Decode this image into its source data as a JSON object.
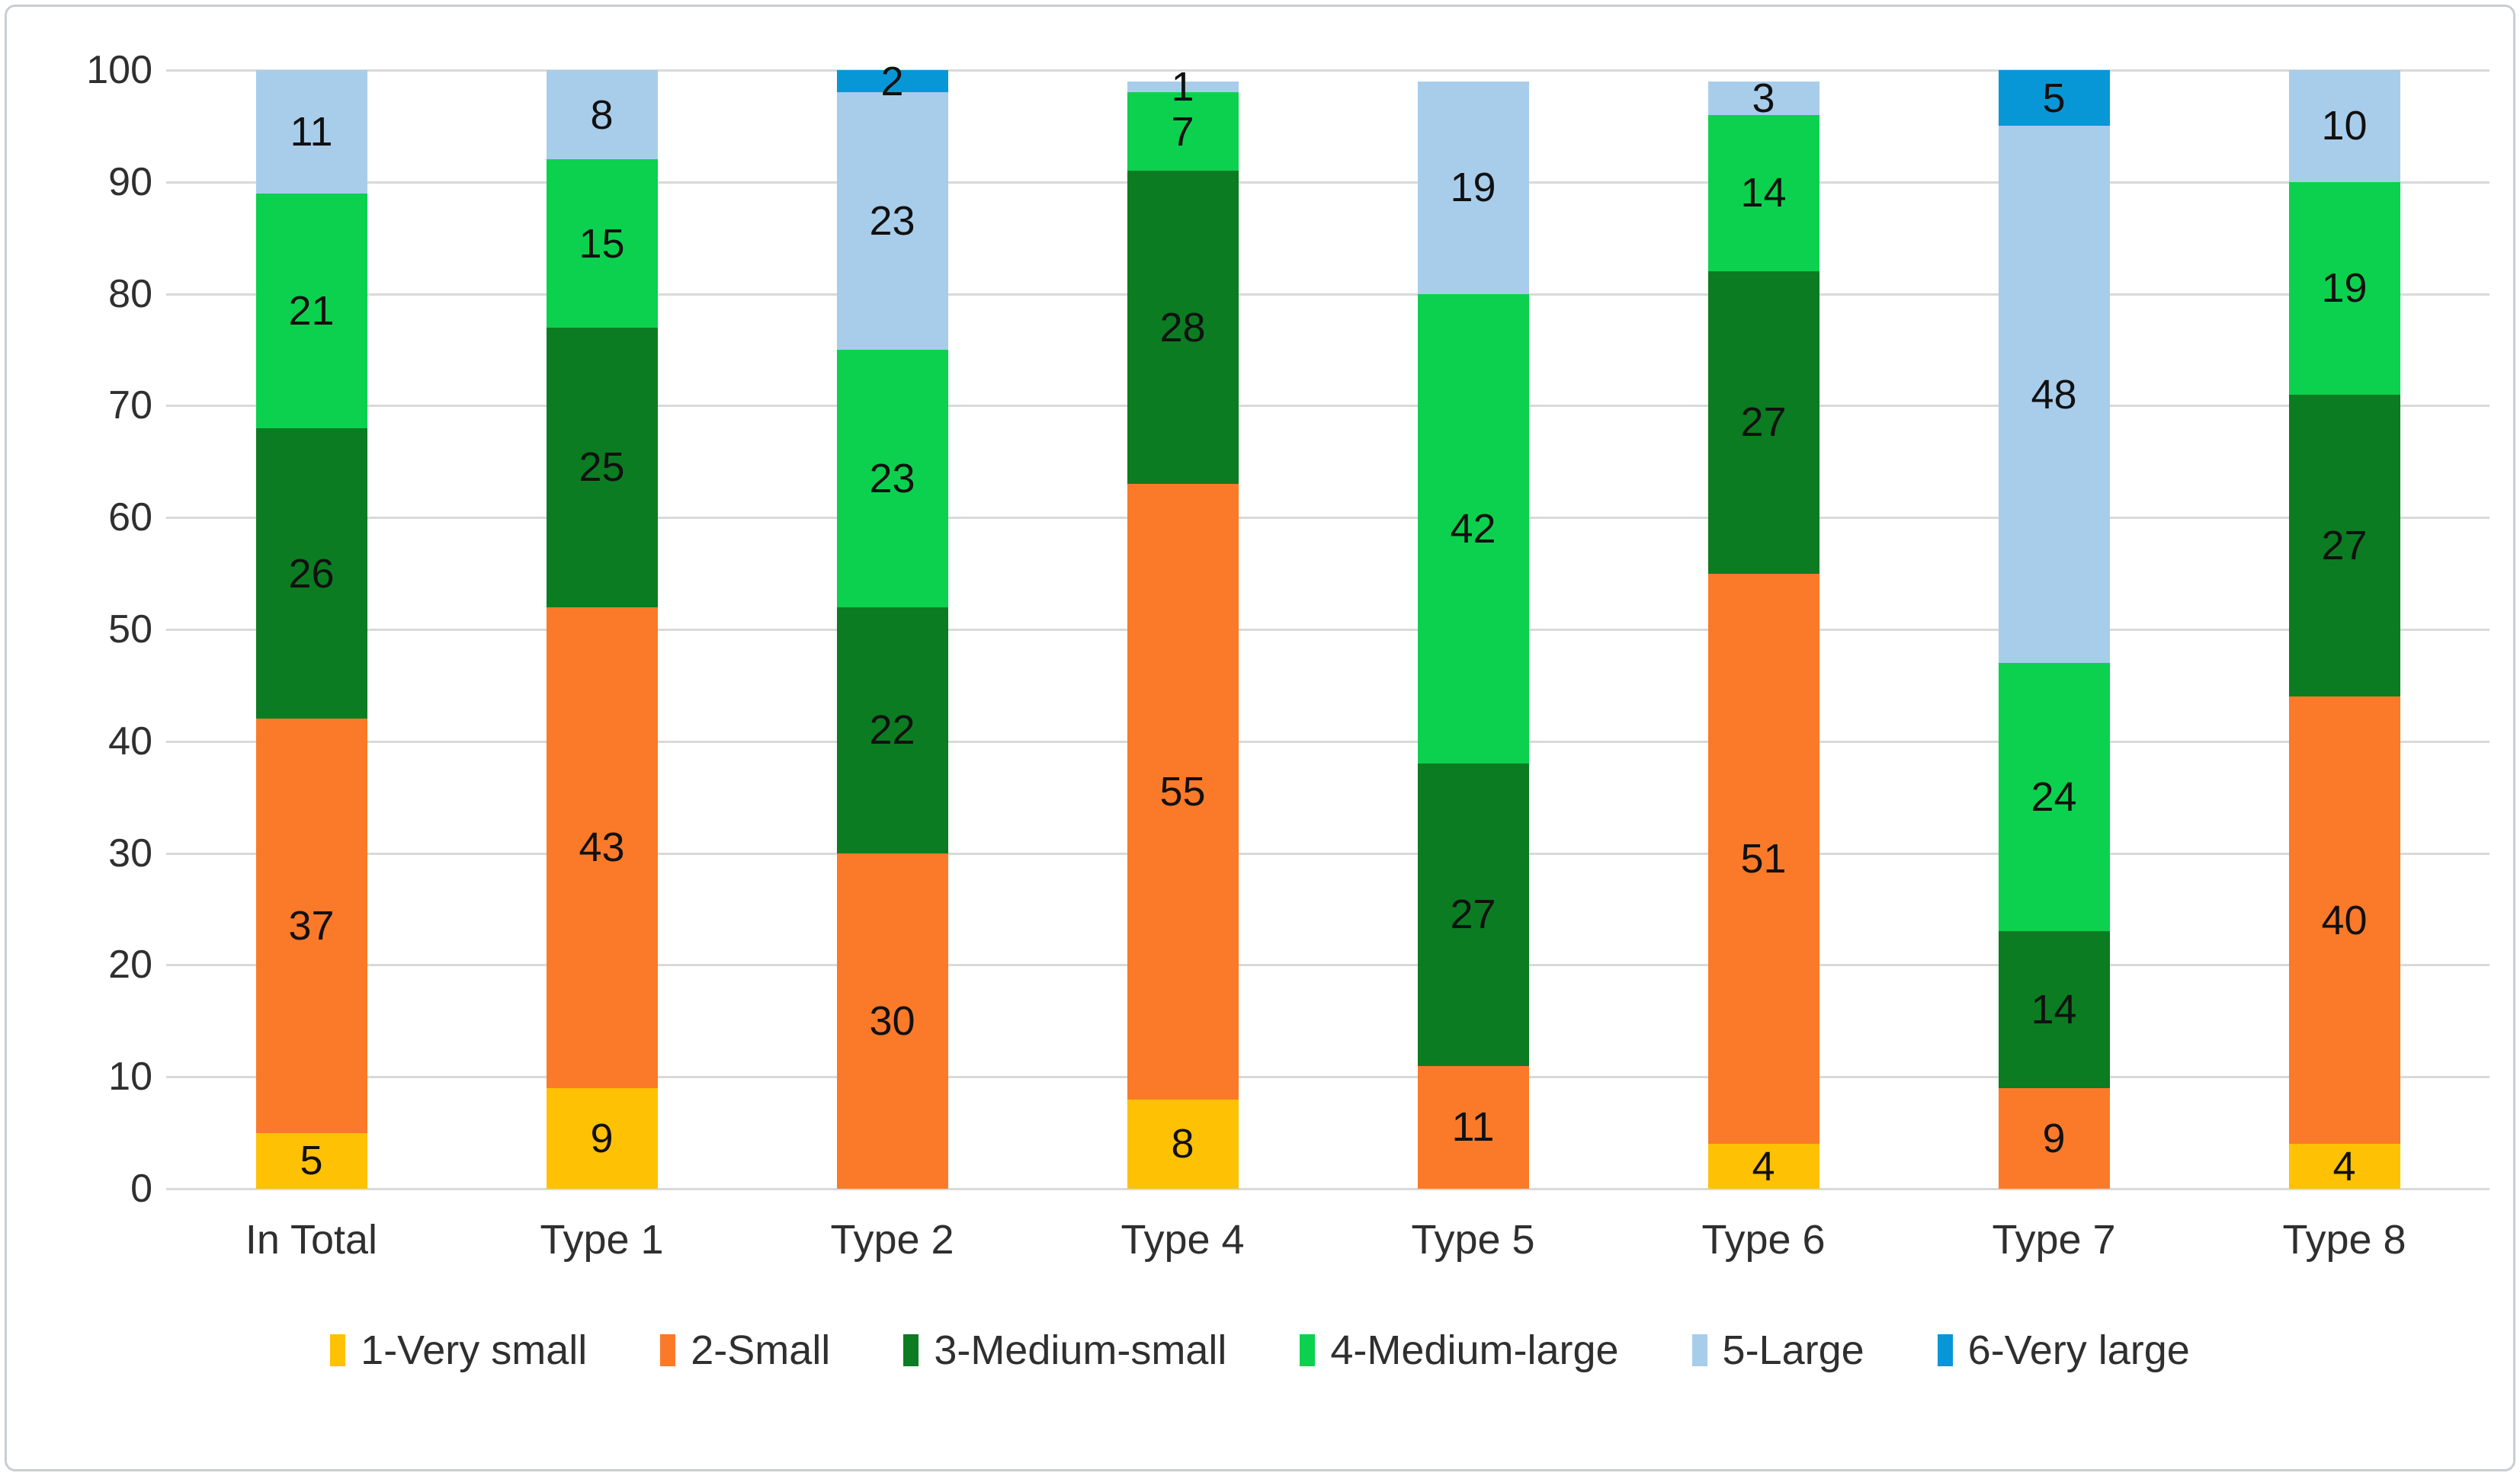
{
  "chart_data": {
    "type": "bar",
    "stacked": true,
    "title": "",
    "xlabel": "",
    "ylabel": "",
    "ylim": [
      0,
      100
    ],
    "y_ticks": [
      0,
      10,
      20,
      30,
      40,
      50,
      60,
      70,
      80,
      90,
      100
    ],
    "grid": true,
    "legend_position": "bottom",
    "categories": [
      "In Total",
      "Type 1",
      "Type 2",
      "Type 4",
      "Type 5",
      "Type 6",
      "Type 7",
      "Type 8"
    ],
    "series": [
      {
        "name": "1-Very small",
        "color": "#FFC103",
        "values": [
          5,
          9,
          0,
          8,
          0,
          4,
          0,
          4
        ]
      },
      {
        "name": "2-Small",
        "color": "#FA7A29",
        "values": [
          37,
          43,
          30,
          55,
          11,
          51,
          9,
          40
        ]
      },
      {
        "name": "3-Medium-small",
        "color": "#0B7C21",
        "values": [
          26,
          25,
          22,
          28,
          27,
          27,
          14,
          27
        ]
      },
      {
        "name": "4-Medium-large",
        "color": "#0CD14E",
        "values": [
          21,
          15,
          23,
          7,
          42,
          14,
          24,
          19
        ]
      },
      {
        "name": "5-Large",
        "color": "#A8CDEB",
        "values": [
          11,
          8,
          23,
          1,
          19,
          3,
          48,
          10
        ]
      },
      {
        "name": "6-Very large",
        "color": "#0897D6",
        "values": [
          0,
          0,
          2,
          0,
          0,
          0,
          5,
          0
        ]
      }
    ]
  },
  "style_colors": {
    "gridline": "#d9d9d9",
    "axis_text": "#2f2f2f",
    "bar_label_text": "#111111",
    "frame_border": "#c9ced3",
    "background": "#ffffff"
  }
}
